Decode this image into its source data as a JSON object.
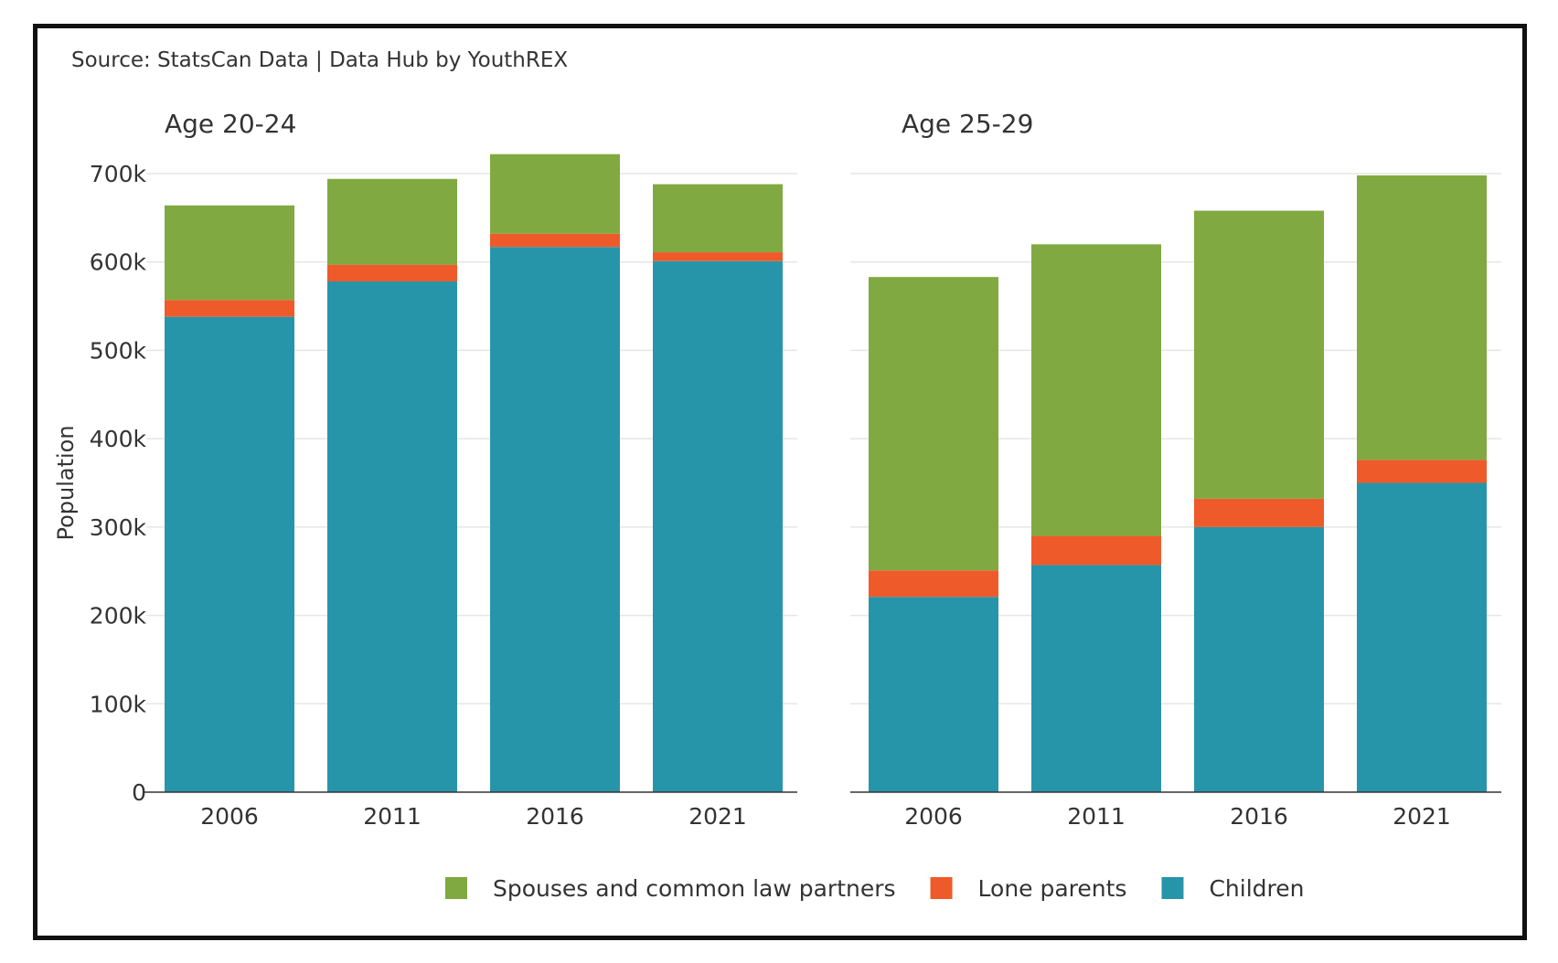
{
  "source_note": "Source: StatsCan Data | Data Hub by YouthREX",
  "chart_data": {
    "type": "bar",
    "stacked": true,
    "ylabel": "Population",
    "ylim": [
      0,
      700000
    ],
    "yticks": [
      0,
      100000,
      200000,
      300000,
      400000,
      500000,
      600000,
      700000
    ],
    "ytick_labels": [
      "0",
      "100k",
      "200k",
      "300k",
      "400k",
      "500k",
      "600k",
      "700k"
    ],
    "grid": true,
    "legend_position": "bottom",
    "colors": {
      "Children": "#2795a9",
      "Lone parents": "#ef5a2b",
      "Spouses and common law partners": "#80aa41"
    },
    "legend": [
      "Spouses and common law partners",
      "Lone parents",
      "Children"
    ],
    "panels": [
      {
        "title": "Age 20-24",
        "categories": [
          "2006",
          "2011",
          "2016",
          "2021"
        ],
        "series": [
          {
            "name": "Children",
            "values": [
              538000,
              578000,
              617000,
              601000
            ]
          },
          {
            "name": "Lone parents",
            "values": [
              19000,
              19000,
              15000,
              10000
            ]
          },
          {
            "name": "Spouses and common law partners",
            "values": [
              107000,
              97000,
              90000,
              77000
            ]
          }
        ]
      },
      {
        "title": "Age 25-29",
        "categories": [
          "2006",
          "2011",
          "2016",
          "2021"
        ],
        "series": [
          {
            "name": "Children",
            "values": [
              221000,
              257000,
              300000,
              350000
            ]
          },
          {
            "name": "Lone parents",
            "values": [
              30000,
              33000,
              32000,
              26000
            ]
          },
          {
            "name": "Spouses and common law partners",
            "values": [
              332000,
              330000,
              326000,
              322000
            ]
          }
        ]
      }
    ]
  }
}
